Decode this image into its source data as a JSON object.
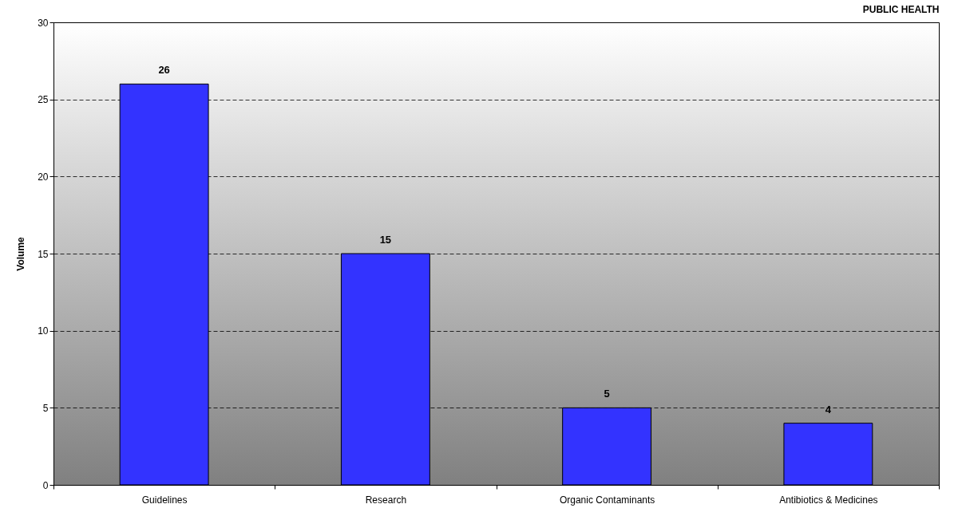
{
  "chart_data": {
    "type": "bar",
    "title": "PUBLIC HEALTH",
    "ylabel": "Volume",
    "categories": [
      "Guidelines",
      "Research",
      "Organic Contaminants",
      "Antibiotics & Medicines"
    ],
    "values": [
      26,
      15,
      5,
      4
    ],
    "color": "#3333ff",
    "ylim": [
      0,
      30
    ],
    "yticks": [
      0,
      5,
      10,
      15,
      20,
      25,
      30
    ],
    "grid": "y",
    "data_labels": true
  }
}
